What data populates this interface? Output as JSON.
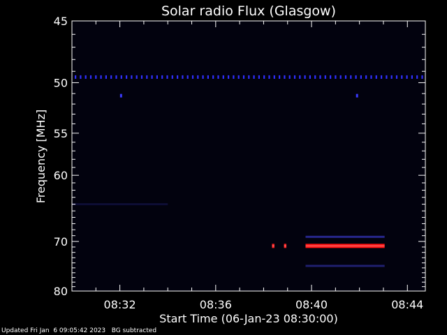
{
  "chart_data": {
    "type": "heatmap",
    "title": "Solar radio Flux (Glasgow)",
    "xlabel": "Start Time (06-Jan-23 08:30:00)",
    "ylabel": "Frequency [MHz]",
    "xlim_minutes": [
      30.0,
      44.75
    ],
    "x_ticks": [
      {
        "value": 32,
        "label": "08:32"
      },
      {
        "value": 36,
        "label": "08:36"
      },
      {
        "value": 40,
        "label": "08:40"
      },
      {
        "value": 44,
        "label": "08:44"
      }
    ],
    "ylim": [
      45,
      80
    ],
    "y_ticks": [
      45,
      50,
      55,
      60,
      70,
      80
    ],
    "y_scale": "reciprocal",
    "background_color": "#02020e",
    "bursts": [
      {
        "start": 38.35,
        "end": 38.45,
        "freq": 70.8,
        "color": "#ff2020"
      },
      {
        "start": 38.85,
        "end": 38.95,
        "freq": 70.8,
        "color": "#ff2020"
      },
      {
        "start": 39.75,
        "end": 43.05,
        "freq": 70.8,
        "color": "#ff1010"
      }
    ],
    "faint_bands": [
      {
        "start": 39.75,
        "end": 43.05,
        "freq": 69.2,
        "color": "#2a2a9a"
      },
      {
        "start": 39.75,
        "end": 43.05,
        "freq": 74.6,
        "color": "#22227a"
      },
      {
        "start": 30.0,
        "end": 34.0,
        "freq": 64.0,
        "color": "#0e0e3a"
      }
    ],
    "interference_line": {
      "freq": 49.5,
      "color": "#3030ff"
    },
    "spot_markers": [
      {
        "time": 32.05,
        "freq": 51.2,
        "color": "#3a3aff"
      },
      {
        "time": 41.9,
        "freq": 51.2,
        "color": "#3a3aff"
      }
    ]
  },
  "footer": {
    "updated": "Updated Fri Jan  6 09:05:42 2023",
    "note": "BG subtracted"
  }
}
